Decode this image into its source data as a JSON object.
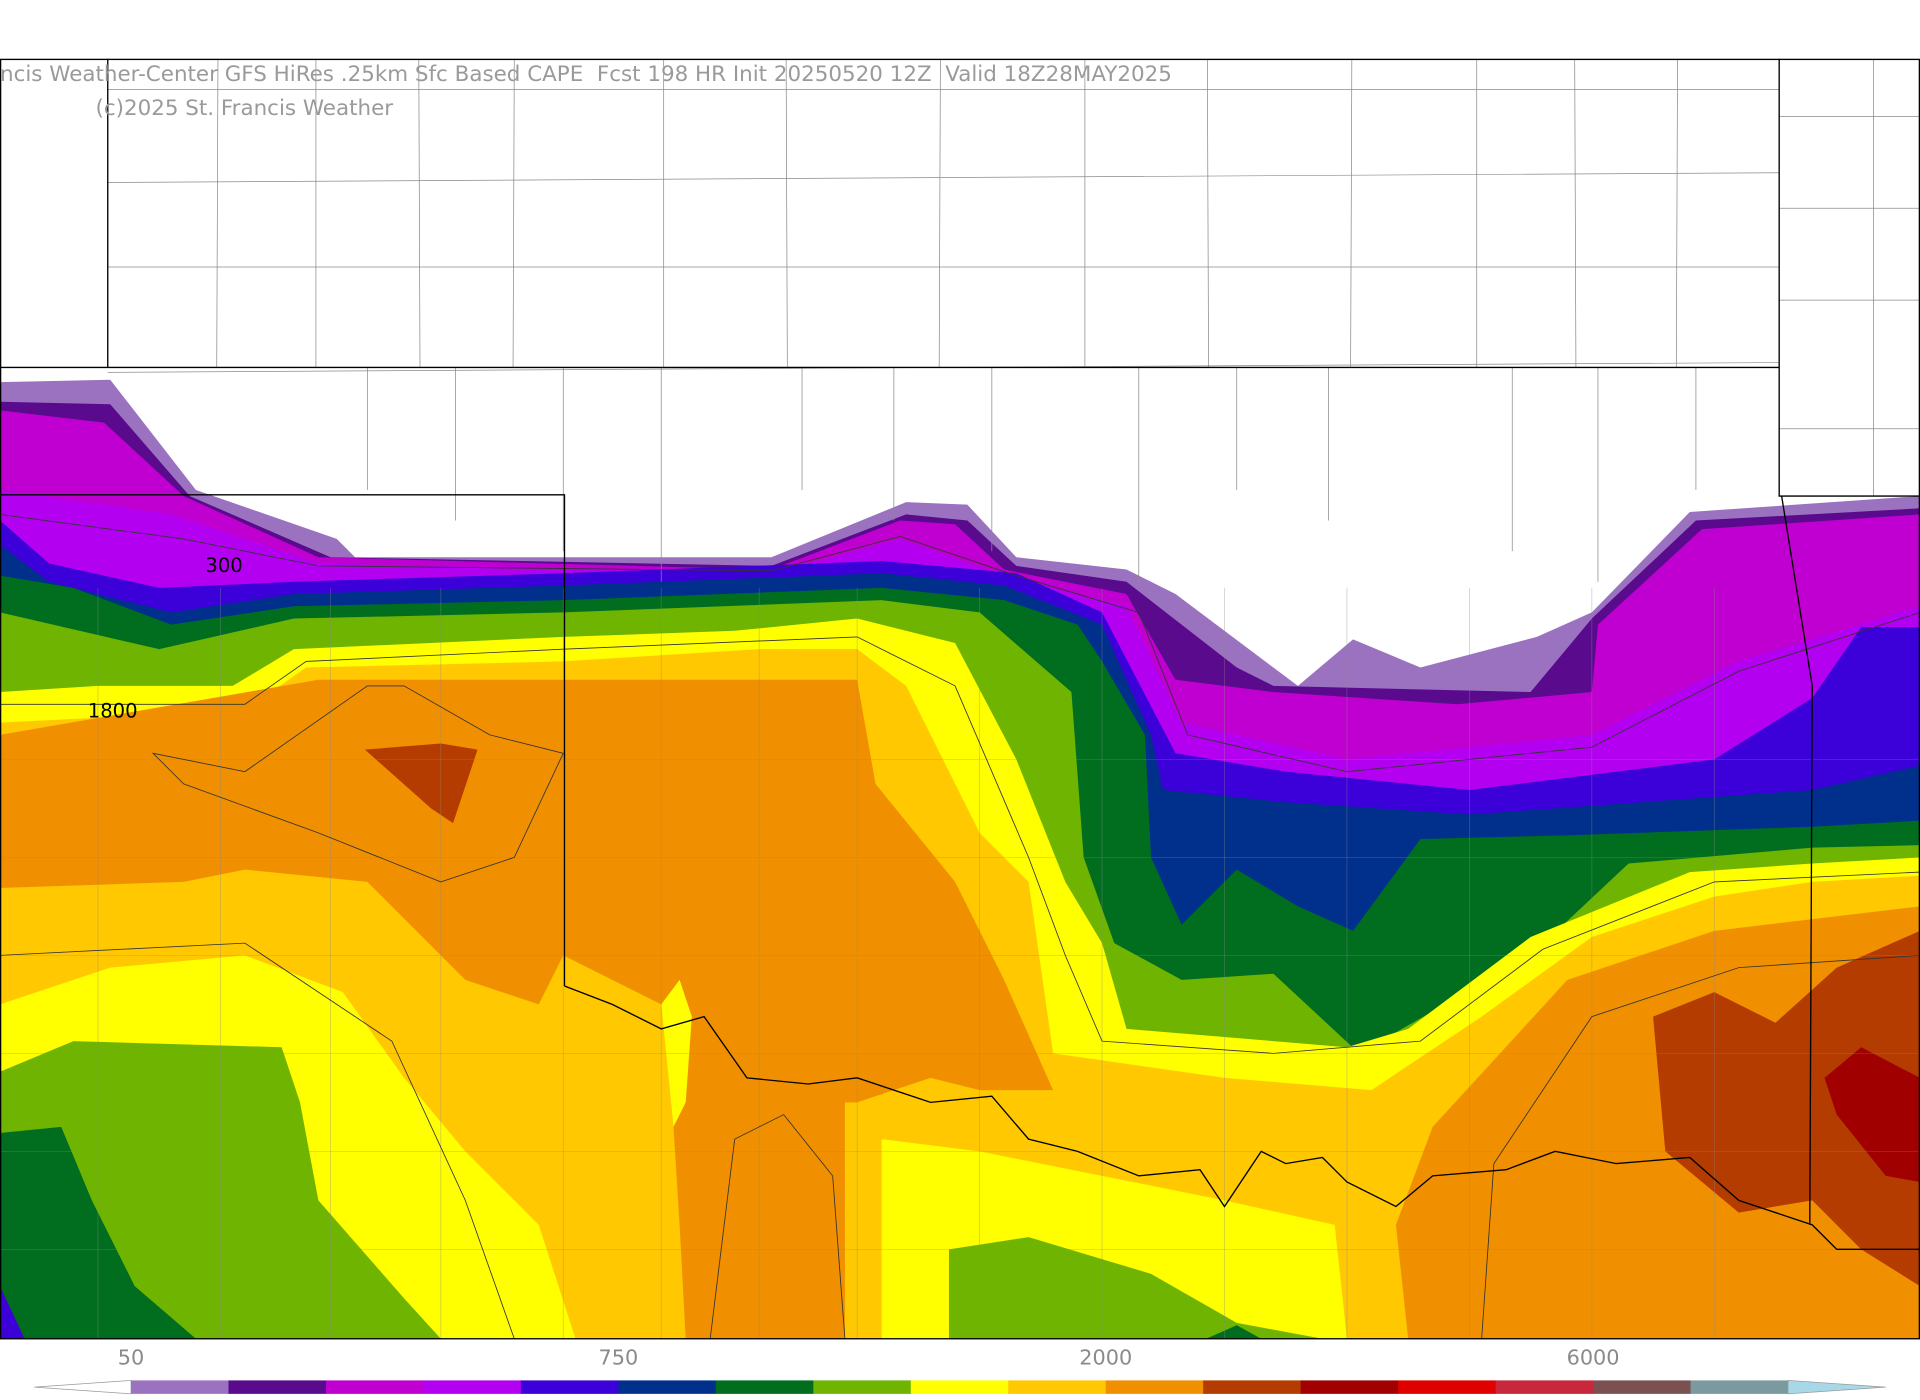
{
  "header": {
    "title": "ncis Weather-Center GFS HiRes .25km Sfc Based CAPE  Fcst 198 HR Init 20250520 12Z  Valid 18Z28MAY2025",
    "credit": "(c)2025 St. Francis Weather"
  },
  "contour_labels": [
    "300",
    "1800"
  ],
  "colorbar": {
    "under_color": "#ffffff",
    "over_color": "#a8d8e8",
    "colors": [
      "#9b72c0",
      "#5a0a8c",
      "#c000d0",
      "#b400f0",
      "#3c00d8",
      "#00308c",
      "#006e1e",
      "#6eb400",
      "#ffff00",
      "#ffc800",
      "#f09000",
      "#b43c00",
      "#a00000",
      "#e00000",
      "#c8283c",
      "#7a5050",
      "#7a9aa0"
    ],
    "labels": [
      "50",
      "750",
      "2000",
      "6000"
    ]
  }
}
